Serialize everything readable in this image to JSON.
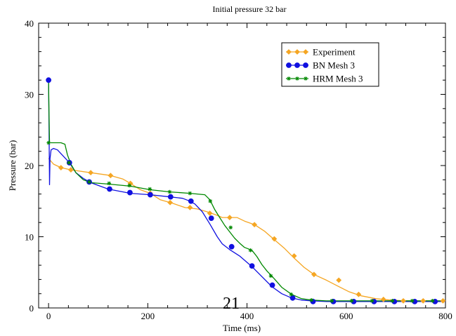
{
  "chart_data": {
    "type": "line",
    "title": "Initial pressure 32 bar",
    "xlabel": "Time (ms)",
    "ylabel": "Pressure (bar)",
    "xlim": [
      -20,
      800
    ],
    "ylim": [
      0,
      40
    ],
    "xticks": [
      0,
      200,
      400,
      600,
      800
    ],
    "yticks": [
      0,
      10,
      20,
      30,
      40
    ],
    "grid": false,
    "legend_position": "top-right",
    "series": [
      {
        "name": "Experiment",
        "color": "#f5a623",
        "marker": "diamond",
        "line": [
          [
            0,
            21.0
          ],
          [
            10,
            20.2
          ],
          [
            25,
            19.7
          ],
          [
            45,
            19.4
          ],
          [
            85,
            19.0
          ],
          [
            125,
            18.6
          ],
          [
            150,
            18.1
          ],
          [
            165,
            17.5
          ],
          [
            185,
            16.6
          ],
          [
            205,
            16.1
          ],
          [
            225,
            15.2
          ],
          [
            250,
            14.7
          ],
          [
            275,
            14.1
          ],
          [
            300,
            13.9
          ],
          [
            320,
            13.5
          ],
          [
            340,
            13.0
          ],
          [
            350,
            12.7
          ],
          [
            365,
            12.7
          ],
          [
            380,
            12.7
          ],
          [
            395,
            12.2
          ],
          [
            415,
            11.7
          ],
          [
            435,
            10.8
          ],
          [
            455,
            9.6
          ],
          [
            475,
            8.4
          ],
          [
            495,
            7.0
          ],
          [
            515,
            5.7
          ],
          [
            535,
            4.7
          ],
          [
            560,
            3.9
          ],
          [
            585,
            3.0
          ],
          [
            605,
            2.3
          ],
          [
            630,
            1.7
          ],
          [
            660,
            1.3
          ],
          [
            690,
            1.1
          ],
          [
            720,
            1.0
          ],
          [
            760,
            1.0
          ],
          [
            800,
            1.0
          ]
        ],
        "markers": [
          [
            25,
            19.7
          ],
          [
            45,
            19.4
          ],
          [
            85,
            19.0
          ],
          [
            125,
            18.6
          ],
          [
            165,
            17.5
          ],
          [
            205,
            16.1
          ],
          [
            245,
            14.8
          ],
          [
            285,
            14.1
          ],
          [
            325,
            13.3
          ],
          [
            365,
            12.7
          ],
          [
            415,
            11.7
          ],
          [
            455,
            9.7
          ],
          [
            495,
            7.3
          ],
          [
            535,
            4.7
          ],
          [
            585,
            3.9
          ],
          [
            625,
            1.9
          ],
          [
            675,
            1.2
          ],
          [
            715,
            1.0
          ],
          [
            755,
            1.0
          ],
          [
            795,
            1.0
          ]
        ]
      },
      {
        "name": "BN Mesh 3",
        "color": "#1010e0",
        "marker": "circle",
        "line": [
          [
            0,
            32.0
          ],
          [
            1,
            25.0
          ],
          [
            2,
            17.3
          ],
          [
            3,
            21.0
          ],
          [
            5,
            22.2
          ],
          [
            10,
            22.4
          ],
          [
            18,
            22.2
          ],
          [
            26,
            21.6
          ],
          [
            34,
            21.0
          ],
          [
            42,
            20.4
          ],
          [
            55,
            19.0
          ],
          [
            70,
            18.2
          ],
          [
            85,
            17.6
          ],
          [
            120,
            16.7
          ],
          [
            165,
            16.1
          ],
          [
            205,
            15.9
          ],
          [
            245,
            15.6
          ],
          [
            270,
            15.4
          ],
          [
            285,
            15.0
          ],
          [
            295,
            14.6
          ],
          [
            310,
            13.5
          ],
          [
            325,
            11.8
          ],
          [
            340,
            10.0
          ],
          [
            350,
            9.0
          ],
          [
            365,
            8.2
          ],
          [
            385,
            7.3
          ],
          [
            410,
            5.8
          ],
          [
            430,
            4.4
          ],
          [
            450,
            3.0
          ],
          [
            470,
            2.0
          ],
          [
            490,
            1.4
          ],
          [
            510,
            1.1
          ],
          [
            530,
            1.0
          ],
          [
            560,
            0.9
          ],
          [
            600,
            0.9
          ],
          [
            650,
            0.9
          ],
          [
            700,
            0.9
          ],
          [
            750,
            0.9
          ],
          [
            800,
            0.9
          ]
        ],
        "markers": [
          [
            0,
            32.0
          ],
          [
            42,
            20.4
          ],
          [
            82,
            17.7
          ],
          [
            123,
            16.7
          ],
          [
            164,
            16.2
          ],
          [
            205,
            15.9
          ],
          [
            246,
            15.6
          ],
          [
            287,
            15.0
          ],
          [
            328,
            12.6
          ],
          [
            369,
            8.6
          ],
          [
            410,
            5.9
          ],
          [
            451,
            3.2
          ],
          [
            492,
            1.4
          ],
          [
            533,
            0.9
          ],
          [
            574,
            0.9
          ],
          [
            615,
            0.9
          ],
          [
            656,
            0.9
          ],
          [
            697,
            0.9
          ],
          [
            738,
            0.9
          ],
          [
            779,
            0.9
          ]
        ]
      },
      {
        "name": "HRM Mesh 3",
        "color": "#008800",
        "marker": "star",
        "line": [
          [
            0,
            32.0
          ],
          [
            1,
            27.0
          ],
          [
            2,
            23.2
          ],
          [
            10,
            23.2
          ],
          [
            25,
            23.2
          ],
          [
            33,
            23.0
          ],
          [
            38,
            21.5
          ],
          [
            45,
            20.2
          ],
          [
            55,
            19.0
          ],
          [
            70,
            18.0
          ],
          [
            85,
            17.6
          ],
          [
            120,
            17.4
          ],
          [
            165,
            17.1
          ],
          [
            205,
            16.6
          ],
          [
            245,
            16.3
          ],
          [
            285,
            16.1
          ],
          [
            315,
            15.9
          ],
          [
            325,
            15.2
          ],
          [
            335,
            13.8
          ],
          [
            345,
            12.7
          ],
          [
            355,
            11.6
          ],
          [
            365,
            10.7
          ],
          [
            375,
            9.8
          ],
          [
            385,
            9.1
          ],
          [
            395,
            8.5
          ],
          [
            410,
            8.1
          ],
          [
            420,
            7.2
          ],
          [
            430,
            6.1
          ],
          [
            440,
            5.2
          ],
          [
            455,
            4.1
          ],
          [
            470,
            2.9
          ],
          [
            490,
            1.9
          ],
          [
            510,
            1.3
          ],
          [
            530,
            1.1
          ],
          [
            560,
            1.0
          ],
          [
            600,
            1.0
          ],
          [
            650,
            1.0
          ],
          [
            700,
            1.0
          ],
          [
            750,
            1.0
          ],
          [
            800,
            1.0
          ]
        ],
        "markers": [
          [
            0,
            23.2
          ],
          [
            41,
            20.4
          ],
          [
            82,
            17.7
          ],
          [
            122,
            17.5
          ],
          [
            163,
            17.2
          ],
          [
            204,
            16.7
          ],
          [
            244,
            16.3
          ],
          [
            285,
            16.1
          ],
          [
            326,
            15.0
          ],
          [
            367,
            11.3
          ],
          [
            407,
            8.1
          ],
          [
            448,
            4.5
          ],
          [
            489,
            1.9
          ],
          [
            530,
            1.1
          ],
          [
            571,
            1.0
          ],
          [
            611,
            1.0
          ],
          [
            652,
            1.0
          ],
          [
            693,
            1.0
          ],
          [
            733,
            1.0
          ],
          [
            774,
            1.0
          ]
        ]
      }
    ]
  },
  "page": {
    "number": "21"
  }
}
